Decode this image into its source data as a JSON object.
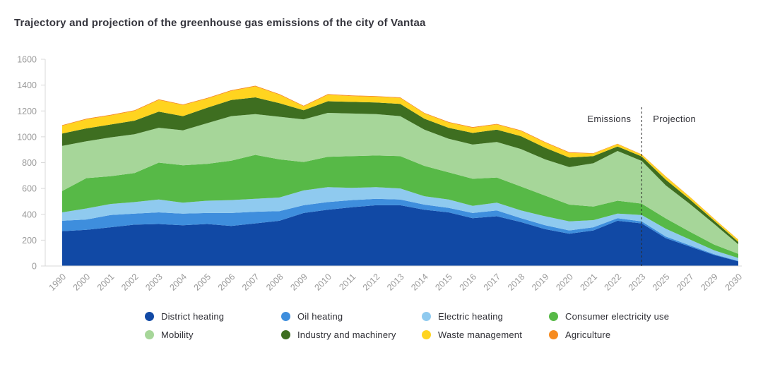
{
  "title": "Trajectory and projection of the greenhouse gas emissions of the city of Vantaa",
  "annotations": {
    "emissions_label": "Emissions",
    "projection_label": "Projection",
    "divider_year": "2023"
  },
  "y_axis": {
    "ticks": [
      0,
      200,
      400,
      600,
      800,
      1000,
      1200,
      1400,
      1600
    ],
    "max": 1600
  },
  "colors": {
    "axis_line": "#d9d9d9",
    "tick_label": "#9a9a9a",
    "title_text": "#35353d",
    "annotation_text": "#2f2f35",
    "divider_line": "#2b2b2b",
    "background": "#ffffff"
  },
  "chart_data": {
    "type": "area",
    "stacked": true,
    "grid": false,
    "legend_position": "bottom",
    "title": "Trajectory and projection of the greenhouse gas emissions of the city of Vantaa",
    "xlabel": "",
    "ylabel": "",
    "ylim": [
      0,
      1600
    ],
    "x": [
      "1990",
      "2000",
      "2001",
      "2002",
      "2003",
      "2004",
      "2005",
      "2006",
      "2007",
      "2008",
      "2009",
      "2010",
      "2011",
      "2012",
      "2013",
      "2014",
      "2015",
      "2016",
      "2017",
      "2018",
      "2019",
      "2020",
      "2021",
      "2022",
      "2023",
      "2025",
      "2027",
      "2029",
      "2030"
    ],
    "series": [
      {
        "name": "District heating",
        "color": "#1149a5",
        "values": [
          270,
          280,
          300,
          320,
          325,
          315,
          325,
          310,
          330,
          350,
          410,
          435,
          455,
          470,
          470,
          435,
          415,
          370,
          385,
          340,
          285,
          250,
          275,
          350,
          330,
          215,
          150,
          85,
          36
        ]
      },
      {
        "name": "Oil heating",
        "color": "#3e8edd",
        "values": [
          80,
          80,
          95,
          85,
          90,
          90,
          85,
          100,
          90,
          75,
          60,
          60,
          55,
          50,
          45,
          40,
          35,
          40,
          45,
          30,
          30,
          25,
          25,
          20,
          15,
          13,
          10,
          6,
          4
        ]
      },
      {
        "name": "Electric heating",
        "color": "#8fcaef",
        "values": [
          65,
          85,
          85,
          90,
          100,
          85,
          95,
          100,
          100,
          105,
          115,
          115,
          95,
          90,
          85,
          65,
          65,
          55,
          60,
          60,
          70,
          70,
          55,
          35,
          50,
          60,
          45,
          30,
          22
        ]
      },
      {
        "name": "Consumer electricity use",
        "color": "#57b947",
        "values": [
          165,
          235,
          215,
          225,
          285,
          290,
          285,
          305,
          340,
          295,
          220,
          235,
          245,
          245,
          250,
          235,
          210,
          210,
          195,
          185,
          160,
          130,
          105,
          100,
          88,
          80,
          60,
          45,
          32
        ]
      },
      {
        "name": "Mobility",
        "color": "#a6d699",
        "values": [
          350,
          285,
          300,
          300,
          270,
          270,
          315,
          345,
          315,
          330,
          330,
          340,
          330,
          320,
          310,
          280,
          260,
          265,
          275,
          290,
          280,
          290,
          335,
          385,
          330,
          255,
          215,
          160,
          74
        ]
      },
      {
        "name": "Industry and machinery",
        "color": "#3e6e20",
        "values": [
          95,
          100,
          100,
          105,
          125,
          110,
          120,
          125,
          130,
          105,
          70,
          90,
          90,
          90,
          95,
          85,
          85,
          90,
          95,
          100,
          90,
          75,
          55,
          35,
          35,
          45,
          35,
          25,
          18
        ]
      },
      {
        "name": "Waste management",
        "color": "#ffd41f",
        "values": [
          60,
          70,
          70,
          75,
          90,
          85,
          70,
          70,
          85,
          65,
          30,
          50,
          45,
          45,
          45,
          40,
          40,
          40,
          40,
          40,
          40,
          35,
          20,
          18,
          13,
          22,
          18,
          14,
          16
        ]
      },
      {
        "name": "Agriculture",
        "color": "#f68b1f",
        "values": [
          5,
          5,
          5,
          5,
          5,
          5,
          5,
          5,
          5,
          5,
          5,
          5,
          5,
          5,
          5,
          5,
          5,
          5,
          5,
          5,
          5,
          5,
          3,
          3,
          3,
          3,
          2,
          2,
          2
        ]
      }
    ]
  }
}
